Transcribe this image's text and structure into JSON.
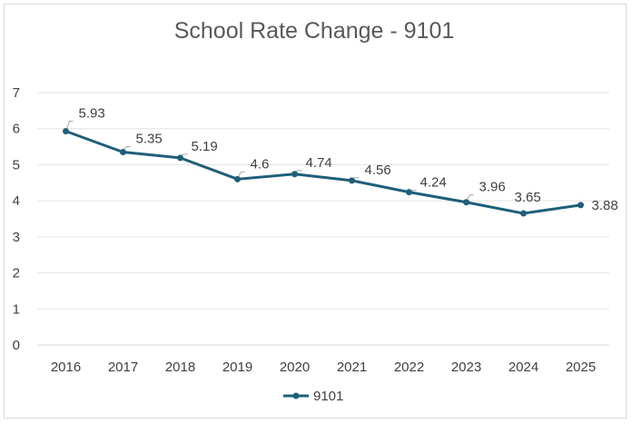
{
  "chart_data": {
    "type": "line",
    "title": "School Rate Change - 9101",
    "xlabel": "",
    "ylabel": "",
    "categories": [
      "2016",
      "2017",
      "2018",
      "2019",
      "2020",
      "2021",
      "2022",
      "2023",
      "2024",
      "2025"
    ],
    "series": [
      {
        "name": "9101",
        "values": [
          5.93,
          5.35,
          5.19,
          4.6,
          4.74,
          4.56,
          4.24,
          3.96,
          3.65,
          3.88
        ],
        "labels": [
          "5.93",
          "5.35",
          "5.19",
          "4.6",
          "4.74",
          "4.56",
          "4.24",
          "3.96",
          "3.65",
          "3.88"
        ],
        "color": "#1f5f7a"
      }
    ],
    "ylim": [
      0,
      7
    ],
    "yticks": [
      "0",
      "1",
      "2",
      "3",
      "4",
      "5",
      "6",
      "7"
    ],
    "grid": true,
    "legend": "bottom"
  }
}
